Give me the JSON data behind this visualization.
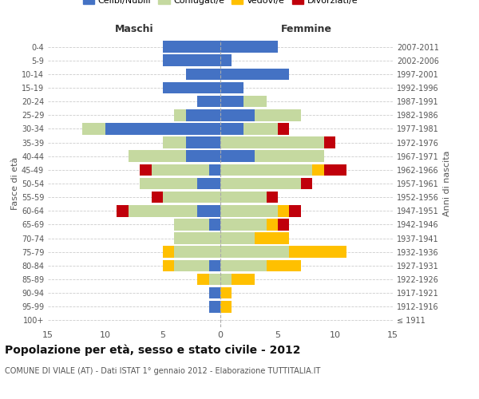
{
  "age_groups": [
    "100+",
    "95-99",
    "90-94",
    "85-89",
    "80-84",
    "75-79",
    "70-74",
    "65-69",
    "60-64",
    "55-59",
    "50-54",
    "45-49",
    "40-44",
    "35-39",
    "30-34",
    "25-29",
    "20-24",
    "15-19",
    "10-14",
    "5-9",
    "0-4"
  ],
  "birth_years": [
    "≤ 1911",
    "1912-1916",
    "1917-1921",
    "1922-1926",
    "1927-1931",
    "1932-1936",
    "1937-1941",
    "1942-1946",
    "1947-1951",
    "1952-1956",
    "1957-1961",
    "1962-1966",
    "1967-1971",
    "1972-1976",
    "1977-1981",
    "1982-1986",
    "1987-1991",
    "1992-1996",
    "1997-2001",
    "2002-2006",
    "2007-2011"
  ],
  "colors": {
    "celibe": "#4472c4",
    "coniugato": "#c5d9a0",
    "vedovo": "#ffc000",
    "divorziato": "#c0000b"
  },
  "maschi": {
    "celibe": [
      0,
      1,
      1,
      0,
      1,
      0,
      0,
      1,
      2,
      0,
      2,
      1,
      3,
      3,
      10,
      3,
      2,
      5,
      3,
      5,
      5
    ],
    "coniugato": [
      0,
      0,
      0,
      1,
      3,
      4,
      4,
      3,
      6,
      5,
      5,
      5,
      5,
      2,
      2,
      1,
      0,
      0,
      0,
      0,
      0
    ],
    "vedovo": [
      0,
      0,
      0,
      1,
      1,
      1,
      0,
      0,
      0,
      0,
      0,
      0,
      0,
      0,
      0,
      0,
      0,
      0,
      0,
      0,
      0
    ],
    "divorziato": [
      0,
      0,
      0,
      0,
      0,
      0,
      0,
      0,
      1,
      1,
      0,
      1,
      0,
      0,
      0,
      0,
      0,
      0,
      0,
      0,
      0
    ]
  },
  "femmine": {
    "celibe": [
      0,
      0,
      0,
      0,
      0,
      0,
      0,
      0,
      0,
      0,
      0,
      0,
      3,
      0,
      2,
      3,
      2,
      2,
      6,
      1,
      5
    ],
    "coniugato": [
      0,
      0,
      0,
      1,
      4,
      6,
      3,
      4,
      5,
      4,
      7,
      8,
      6,
      9,
      3,
      4,
      2,
      0,
      0,
      0,
      0
    ],
    "vedovo": [
      0,
      1,
      1,
      2,
      3,
      5,
      3,
      1,
      1,
      0,
      0,
      1,
      0,
      0,
      0,
      0,
      0,
      0,
      0,
      0,
      0
    ],
    "divorziato": [
      0,
      0,
      0,
      0,
      0,
      0,
      0,
      1,
      1,
      1,
      1,
      2,
      0,
      1,
      1,
      0,
      0,
      0,
      0,
      0,
      0
    ]
  },
  "xlim": 15,
  "title": "Popolazione per età, sesso e stato civile - 2012",
  "subtitle": "COMUNE DI VIALE (AT) - Dati ISTAT 1° gennaio 2012 - Elaborazione TUTTITALIA.IT",
  "xlabel_left": "Maschi",
  "xlabel_right": "Femmine",
  "ylabel_left": "Fasce di età",
  "ylabel_right": "Anni di nascita",
  "legend_labels": [
    "Celibi/Nubili",
    "Coniugati/e",
    "Vedovi/e",
    "Divorziati/e"
  ]
}
